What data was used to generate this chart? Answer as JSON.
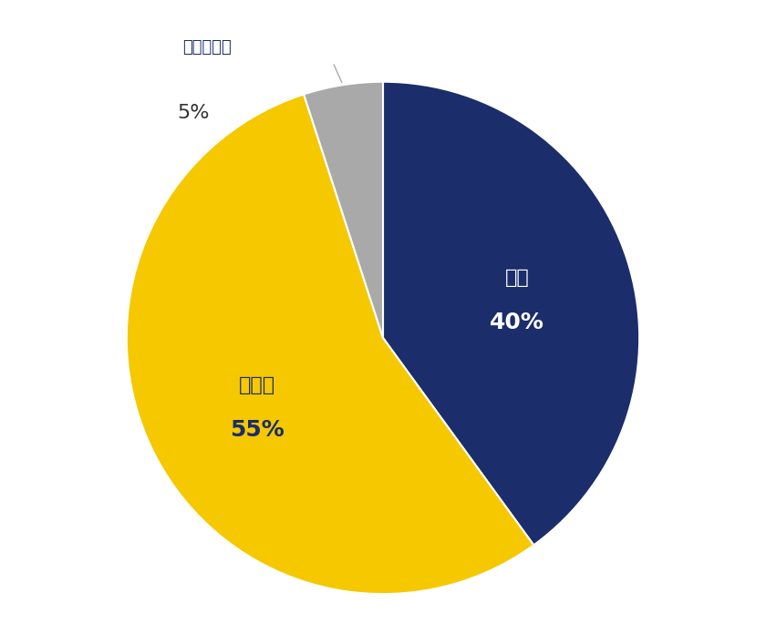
{
  "slices": [
    {
      "label": "いた",
      "pct": 40,
      "color": "#1b2d6b",
      "text_color": "#ffffff"
    },
    {
      "label": "いない",
      "pct": 55,
      "color": "#f5c800",
      "text_color": "#1b2d6b"
    },
    {
      "label": "わからない",
      "pct": 5,
      "color": "#a9a9a9",
      "text_color": "#333333"
    }
  ],
  "startangle": 90,
  "background_color": "#ffffff",
  "inside_label_fontsize": 16,
  "outside_label_fontsize": 13,
  "pct_fontsize_inside": 18,
  "pct_fontsize_outside": 16,
  "outside_label_color": "#1b2d6b",
  "outside_pct_color": "#333333",
  "connector_color": "#aaaaaa"
}
